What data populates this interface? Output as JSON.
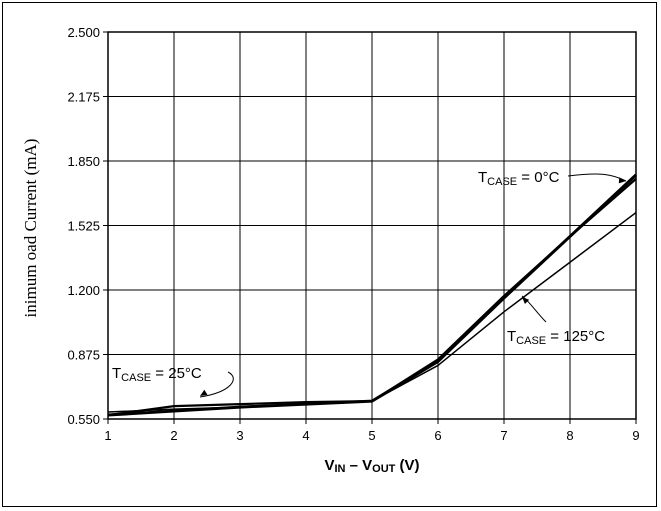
{
  "chart_data": {
    "type": "line",
    "title": "",
    "xlabel": {
      "main_1": "V",
      "sub_1": "IN",
      "dash": " – ",
      "main_2": "V",
      "sub_2": "OUT",
      "unit": " (V)"
    },
    "ylabel": "inimum oad Current (mA)",
    "xlim": [
      1,
      9
    ],
    "ylim": [
      0.55,
      2.5
    ],
    "x_ticks": [
      "1",
      "2",
      "3",
      "4",
      "5",
      "6",
      "7",
      "8",
      "9"
    ],
    "y_ticks": [
      "0.550",
      "0.875",
      "1.200",
      "1.525",
      "1.850",
      "2.175",
      "2.500"
    ],
    "grid": true,
    "series": [
      {
        "name": "TCASE = 0°C",
        "x": [
          1,
          2,
          3,
          4,
          5,
          6,
          7,
          8,
          9
        ],
        "y": [
          0.57,
          0.59,
          0.61,
          0.625,
          0.64,
          0.84,
          1.16,
          1.47,
          1.78
        ]
      },
      {
        "name": "TCASE = 25°C",
        "x": [
          1,
          2,
          3,
          4,
          5,
          6,
          7,
          8,
          9
        ],
        "y": [
          0.57,
          0.615,
          0.625,
          0.635,
          0.64,
          0.85,
          1.17,
          1.47,
          1.76
        ]
      },
      {
        "name": "TCASE = 125°C",
        "x": [
          1,
          2,
          3,
          4,
          5,
          6,
          7,
          8,
          9
        ],
        "y": [
          0.585,
          0.6,
          0.61,
          0.625,
          0.64,
          0.82,
          1.09,
          1.34,
          1.59
        ]
      }
    ],
    "annotations": [
      {
        "label_main": "T",
        "label_sub": "CASE",
        "label_rest": " = 0°C",
        "series": "TCASE = 0°C"
      },
      {
        "label_main": "T",
        "label_sub": "CASE",
        "label_rest": " = 25°C",
        "series": "TCASE = 25°C"
      },
      {
        "label_main": "T",
        "label_sub": "CASE",
        "label_rest": " = 125°C",
        "series": "TCASE = 125°C"
      }
    ]
  }
}
